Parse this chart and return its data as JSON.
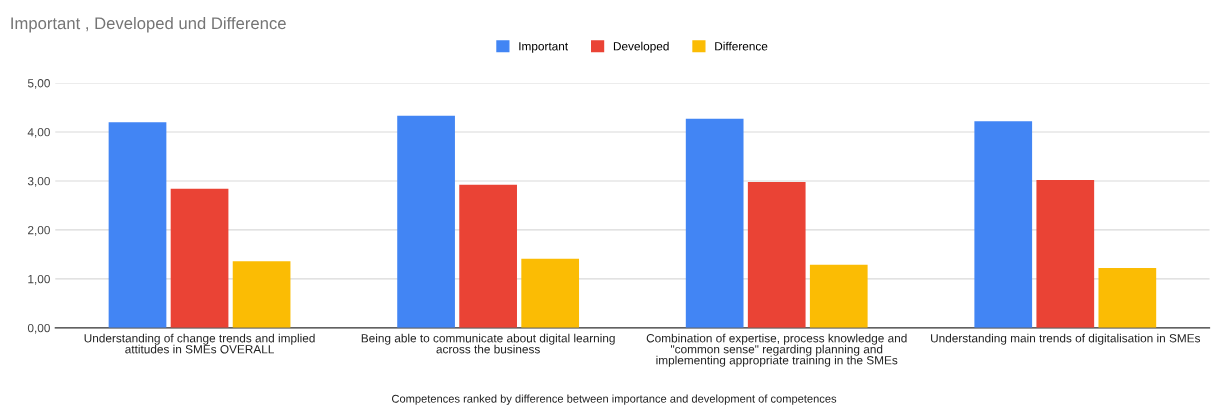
{
  "chart_data": {
    "type": "bar",
    "title": "Important , Developed und Difference",
    "xlabel": "Competences ranked by difference between importance and development of competences",
    "categories": [
      "Understanding of change trends and implied attitudes in SMEs OVERALL",
      "Being able to communicate about digital learning across the business",
      "Combination of expertise, process knowledge and \"common sense\" regarding planning and implementing appropriate training in the SMEs",
      "Understanding main trends of digitalisation in SMEs"
    ],
    "series": [
      {
        "name": "Important",
        "color": "#4285f4",
        "values": [
          4.2,
          4.33,
          4.27,
          4.22
        ]
      },
      {
        "name": "Developed",
        "color": "#ea4335",
        "values": [
          2.84,
          2.92,
          2.98,
          3.02
        ]
      },
      {
        "name": "Difference",
        "color": "#fbbc04",
        "values": [
          1.36,
          1.41,
          1.29,
          1.22
        ]
      }
    ],
    "ylim": [
      0,
      5
    ],
    "yticks": [
      {
        "value": 0,
        "label": "0,00"
      },
      {
        "value": 1,
        "label": "1,00"
      },
      {
        "value": 2,
        "label": "2,00"
      },
      {
        "value": 3,
        "label": "3,00"
      },
      {
        "value": 4,
        "label": "4,00"
      },
      {
        "value": 5,
        "label": "5,00"
      }
    ],
    "grid": "y",
    "legend": "top"
  }
}
